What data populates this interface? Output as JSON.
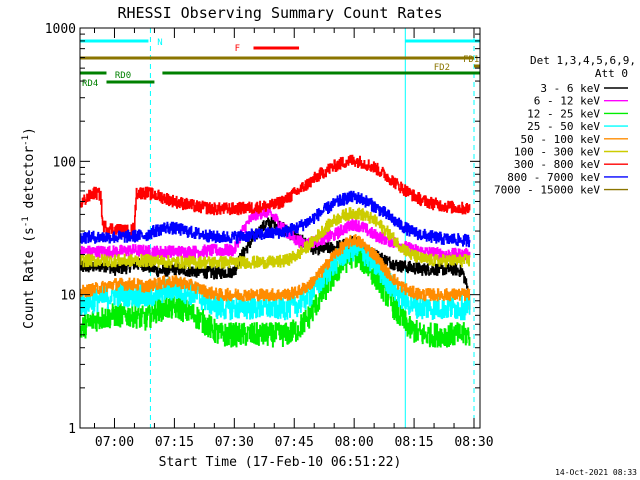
{
  "chart_data": {
    "type": "line",
    "title": "RHESSI Observing Summary Count Rates",
    "xlabel": "Start Time (17-Feb-10 06:51:22)",
    "ylabel": "Count Rate (s",
    "ylabel_sup": "-1",
    "ylabel_tail": " detector",
    "ylabel_sup2": "-1",
    "ylabel_end": ")",
    "y_scale": "log",
    "ylim": [
      1,
      1000
    ],
    "xlim_minutes": [
      411.37,
      511.5
    ],
    "x_ticks": [
      {
        "min": 420,
        "label": "07:00"
      },
      {
        "min": 435,
        "label": "07:15"
      },
      {
        "min": 450,
        "label": "07:30"
      },
      {
        "min": 465,
        "label": "07:45"
      },
      {
        "min": 480,
        "label": "08:00"
      },
      {
        "min": 495,
        "label": "08:15"
      },
      {
        "min": 510,
        "label": "08:30"
      }
    ],
    "y_ticks": [
      {
        "val": 1,
        "label": "1"
      },
      {
        "val": 10,
        "label": "10"
      },
      {
        "val": 100,
        "label": "100"
      },
      {
        "val": 1000,
        "label": "1000"
      }
    ],
    "legend_title": "Det 1,3,4,5,6,9,",
    "legend_subtitle": "Att 0",
    "series": [
      {
        "name": "3 - 6 keV",
        "color": "#000000",
        "x": [
          411.5,
          418,
          420,
          423,
          425,
          428,
          431,
          435,
          440,
          445,
          450,
          452,
          455,
          458,
          460,
          463,
          466,
          470,
          475,
          478,
          480,
          482,
          485,
          488,
          491,
          494,
          497,
          500,
          503,
          505,
          507,
          508.5,
          509
        ],
        "y": [
          16,
          16.5,
          15.5,
          16,
          17,
          16.5,
          15,
          15.5,
          15,
          14.5,
          15,
          20,
          27,
          34,
          35,
          30,
          26,
          22,
          22.5,
          24,
          25,
          23,
          20,
          18,
          16.5,
          16,
          15.5,
          15.5,
          15.5,
          15.5,
          15,
          10.5,
          8
        ]
      },
      {
        "name": "6 - 12 keV",
        "color": "#ff00ff",
        "x": [
          411.5,
          418,
          420,
          425,
          430,
          435,
          440,
          445,
          450,
          452,
          455,
          458,
          460,
          462,
          465,
          468,
          470,
          475,
          478,
          480,
          482,
          485,
          488,
          491,
          494,
          497,
          500,
          503,
          505,
          507,
          509
        ],
        "y": [
          21,
          21,
          21,
          21.5,
          21,
          21,
          21,
          21.5,
          21.5,
          30,
          40,
          42,
          38,
          32,
          26,
          24,
          25,
          28,
          32,
          34,
          32,
          28,
          26,
          24,
          22,
          21,
          20.5,
          20,
          20,
          20,
          20
        ]
      },
      {
        "name": "12 - 25 keV",
        "color": "#00ee00",
        "x": [
          411.5,
          415,
          420,
          425,
          428,
          430,
          433,
          436,
          440,
          443,
          446,
          450,
          455,
          460,
          463,
          466,
          469,
          472,
          475,
          478,
          480,
          482,
          485,
          488,
          491,
          494,
          497,
          500,
          503,
          505,
          507,
          509
        ],
        "y": [
          5.5,
          6.5,
          7,
          7,
          6.5,
          7.5,
          8,
          8,
          7,
          6,
          5,
          5,
          5,
          5,
          5,
          5.5,
          7,
          10,
          14,
          18,
          20,
          18,
          14,
          10,
          7,
          5.5,
          5,
          5,
          5,
          5,
          5,
          5
        ]
      },
      {
        "name": "25 - 50 keV",
        "color": "#00ffff",
        "x": [
          411.5,
          415,
          420,
          425,
          428,
          430,
          433,
          436,
          440,
          443,
          446,
          450,
          455,
          460,
          463,
          466,
          469,
          472,
          475,
          478,
          480,
          482,
          485,
          488,
          491,
          494,
          497,
          500,
          503,
          505,
          507,
          509
        ],
        "y": [
          8.5,
          9,
          10,
          10,
          9.5,
          10,
          11,
          11,
          10,
          9,
          8,
          8,
          8,
          8,
          8,
          8.5,
          10,
          13,
          17,
          21,
          22,
          21,
          17,
          13,
          10,
          8.5,
          8,
          8,
          8,
          8,
          8,
          8
        ]
      },
      {
        "name": "50 - 100 keV",
        "color": "#ff8c00",
        "x": [
          411.5,
          415,
          420,
          425,
          428,
          430,
          433,
          436,
          440,
          443,
          446,
          450,
          455,
          460,
          463,
          466,
          469,
          472,
          475,
          478,
          480,
          482,
          485,
          488,
          491,
          494,
          497,
          500,
          503,
          505,
          507,
          509
        ],
        "y": [
          10.5,
          11,
          12,
          12,
          11.5,
          12,
          12.5,
          12.5,
          11.5,
          10.5,
          10,
          10,
          10,
          10,
          10,
          10.5,
          12,
          15,
          20,
          24,
          26,
          24,
          20,
          15,
          12,
          10.5,
          10,
          10,
          10,
          10,
          10,
          10
        ]
      },
      {
        "name": "100 - 300 keV",
        "color": "#cccc00",
        "x": [
          411.5,
          415,
          420,
          425,
          430,
          435,
          440,
          445,
          450,
          455,
          460,
          463,
          466,
          469,
          472,
          475,
          478,
          480,
          482,
          485,
          488,
          491,
          494,
          497,
          500,
          503,
          505,
          507,
          509
        ],
        "y": [
          18,
          18,
          18,
          18,
          18,
          17.5,
          17.5,
          17.5,
          17.5,
          17.5,
          17.5,
          18,
          20,
          24,
          30,
          36,
          40,
          41,
          40,
          36,
          30,
          24,
          20,
          18.5,
          18,
          18,
          18,
          18,
          18
        ]
      },
      {
        "name": "300 - 800 keV",
        "color": "#ff0000",
        "x": [
          411.5,
          413,
          415,
          416.5,
          417,
          418,
          420,
          423,
          424,
          425,
          425.5,
          428,
          431,
          435,
          440,
          445,
          450,
          455,
          460,
          463,
          466,
          469,
          472,
          475,
          478,
          480,
          482,
          485,
          488,
          491,
          494,
          497,
          500,
          503,
          505,
          507,
          509
        ],
        "y": [
          48,
          53,
          58,
          56,
          33,
          32,
          31,
          30,
          30,
          32,
          58,
          58,
          55,
          50,
          46,
          44,
          44,
          45,
          47,
          52,
          60,
          70,
          82,
          92,
          100,
          102,
          98,
          90,
          78,
          66,
          57,
          51,
          48,
          46,
          45,
          44.5,
          44
        ]
      },
      {
        "name": "800 - 7000 keV",
        "color": "#0000ff",
        "x": [
          411.5,
          415,
          420,
          425,
          428,
          430,
          433,
          436,
          440,
          445,
          450,
          455,
          460,
          463,
          466,
          469,
          472,
          475,
          478,
          480,
          482,
          485,
          488,
          491,
          494,
          497,
          500,
          503,
          505,
          507,
          509
        ],
        "y": [
          27,
          27,
          27,
          27.5,
          28,
          30,
          32,
          31,
          29,
          27,
          27,
          28,
          29,
          30,
          32,
          36,
          42,
          48,
          53,
          54,
          52,
          46,
          40,
          34,
          30,
          28,
          27,
          26,
          26,
          25.5,
          25.5
        ]
      },
      {
        "name": "7000 - 15000 keV",
        "color": "#8b7500",
        "x": [],
        "y": []
      }
    ],
    "bands": [
      {
        "label": "N",
        "color": "#00ffff",
        "x1": 411.37,
        "x2": 428.5,
        "level": 1
      },
      {
        "label": "N",
        "color": "#00ffff",
        "x1": 492.8,
        "x2": 511.5,
        "level": 1
      },
      {
        "label": "F",
        "color": "#ff0000",
        "x1": 454.8,
        "x2": 466.2,
        "level": 2
      },
      {
        "label": "FD1",
        "color": "#8b7500",
        "x1": 411.37,
        "x2": 510.0,
        "level": 3
      },
      {
        "label": "FD2",
        "color": "#8b7500",
        "x1": 510.0,
        "x2": 511.5,
        "level": 4
      },
      {
        "label": "RD0",
        "color": "#008000",
        "x1": 411.37,
        "x2": 418.0,
        "level": 5
      },
      {
        "label": "RD0",
        "color": "#008000",
        "x1": 432.0,
        "x2": 511.5,
        "level": 5
      },
      {
        "label": "RD4",
        "color": "#008000",
        "x1": 418.0,
        "x2": 430.0,
        "level": 6
      }
    ],
    "vlines": [
      {
        "min": 411.37,
        "color": "#00ffff",
        "style": "solid"
      },
      {
        "min": 429.0,
        "color": "#00ffff",
        "style": "dashed"
      },
      {
        "min": 492.8,
        "color": "#00ffff",
        "style": "solid"
      },
      {
        "min": 510.0,
        "color": "#00ffff",
        "style": "dashed"
      }
    ]
  },
  "timestamp": "14-Oct-2021 08:33"
}
